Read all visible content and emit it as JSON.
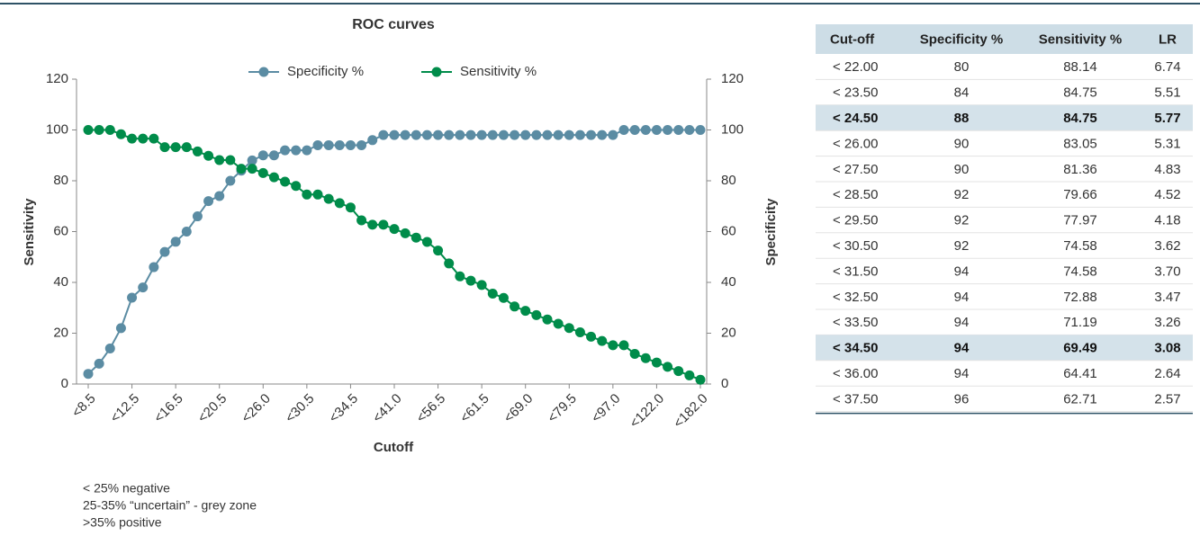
{
  "chart_data": {
    "type": "line",
    "title": "ROC curves",
    "xlabel": "Cutoff",
    "ylabel": "Sensitivity",
    "y2label": "Specificity",
    "categories": [
      "<8.5",
      null,
      null,
      null,
      "<12.5",
      null,
      null,
      null,
      "<16.5",
      null,
      null,
      null,
      "<20.5",
      null,
      null,
      null,
      "<26.0",
      null,
      null,
      null,
      "<30.5",
      null,
      null,
      null,
      "<34.5",
      null,
      null,
      null,
      "<41.0",
      null,
      null,
      null,
      "<56.5",
      null,
      null,
      null,
      "<61.5",
      null,
      null,
      null,
      "<69.0",
      null,
      null,
      null,
      "<79.5",
      null,
      null,
      null,
      "<97.0",
      null,
      null,
      null,
      "<122.0",
      null,
      null,
      null,
      "<182.0"
    ],
    "series": [
      {
        "name": "Specificity %",
        "color": "#5b8ca3",
        "axis": "y2",
        "values": [
          4,
          8,
          14,
          22,
          34,
          38,
          46,
          52,
          56,
          60,
          66,
          72,
          74,
          80,
          84,
          88,
          90,
          90,
          92,
          92,
          92,
          94,
          94,
          94,
          94,
          94,
          96,
          98,
          98,
          98,
          98,
          98,
          98,
          98,
          98,
          98,
          98,
          98,
          98,
          98,
          98,
          98,
          98,
          98,
          98,
          98,
          98,
          98,
          98,
          100,
          100,
          100,
          100,
          100,
          100,
          100,
          100
        ]
      },
      {
        "name": "Sensitivity %",
        "color": "#008c4a",
        "values": [
          100,
          100,
          100,
          98.31,
          96.61,
          96.61,
          96.61,
          93.22,
          93.22,
          93.22,
          91.53,
          89.83,
          88.14,
          88.14,
          84.75,
          84.75,
          83.05,
          81.36,
          79.66,
          77.97,
          74.58,
          74.58,
          72.88,
          71.19,
          69.49,
          64.41,
          62.71,
          62.71,
          61.02,
          59.32,
          57.63,
          55.93,
          52.54,
          47.46,
          42.37,
          40.68,
          38.98,
          35.59,
          33.9,
          30.51,
          28.81,
          27.12,
          25.42,
          23.73,
          22.03,
          20.34,
          18.64,
          16.95,
          15.25,
          15.25,
          11.86,
          10.17,
          8.47,
          6.78,
          5.08,
          3.39,
          1.69
        ]
      }
    ],
    "ylim": [
      0,
      120
    ],
    "yticks": [
      0,
      20,
      40,
      60,
      80,
      100,
      120
    ],
    "y2lim": [
      0,
      120
    ],
    "y2ticks": [
      0,
      20,
      40,
      60,
      80,
      100,
      120
    ],
    "legend": "top"
  },
  "notes": [
    "< 25% negative",
    "25-35% “uncertain” - grey zone",
    ">35% positive"
  ],
  "table": {
    "header": [
      "Cut-off",
      "Specificity %",
      "Sensitivity %",
      "LR"
    ],
    "rows": [
      {
        "cells": [
          "< 22.00",
          "80",
          "88.14",
          "6.74"
        ],
        "highlighted": false
      },
      {
        "cells": [
          "< 23.50",
          "84",
          "84.75",
          "5.51"
        ],
        "highlighted": false
      },
      {
        "cells": [
          "< 24.50",
          "88",
          "84.75",
          "5.77"
        ],
        "highlighted": true
      },
      {
        "cells": [
          "< 26.00",
          "90",
          "83.05",
          "5.31"
        ],
        "highlighted": false
      },
      {
        "cells": [
          "< 27.50",
          "90",
          "81.36",
          "4.83"
        ],
        "highlighted": false
      },
      {
        "cells": [
          "< 28.50",
          "92",
          "79.66",
          "4.52"
        ],
        "highlighted": false
      },
      {
        "cells": [
          "< 29.50",
          "92",
          "77.97",
          "4.18"
        ],
        "highlighted": false
      },
      {
        "cells": [
          "< 30.50",
          "92",
          "74.58",
          "3.62"
        ],
        "highlighted": false
      },
      {
        "cells": [
          "< 31.50",
          "94",
          "74.58",
          "3.70"
        ],
        "highlighted": false
      },
      {
        "cells": [
          "< 32.50",
          "94",
          "72.88",
          "3.47"
        ],
        "highlighted": false
      },
      {
        "cells": [
          "< 33.50",
          "94",
          "71.19",
          "3.26"
        ],
        "highlighted": false
      },
      {
        "cells": [
          "< 34.50",
          "94",
          "69.49",
          "3.08"
        ],
        "highlighted": true
      },
      {
        "cells": [
          "< 36.00",
          "94",
          "64.41",
          "2.64"
        ],
        "highlighted": false
      },
      {
        "cells": [
          "< 37.50",
          "96",
          "62.71",
          "2.57"
        ],
        "highlighted": false
      }
    ]
  }
}
